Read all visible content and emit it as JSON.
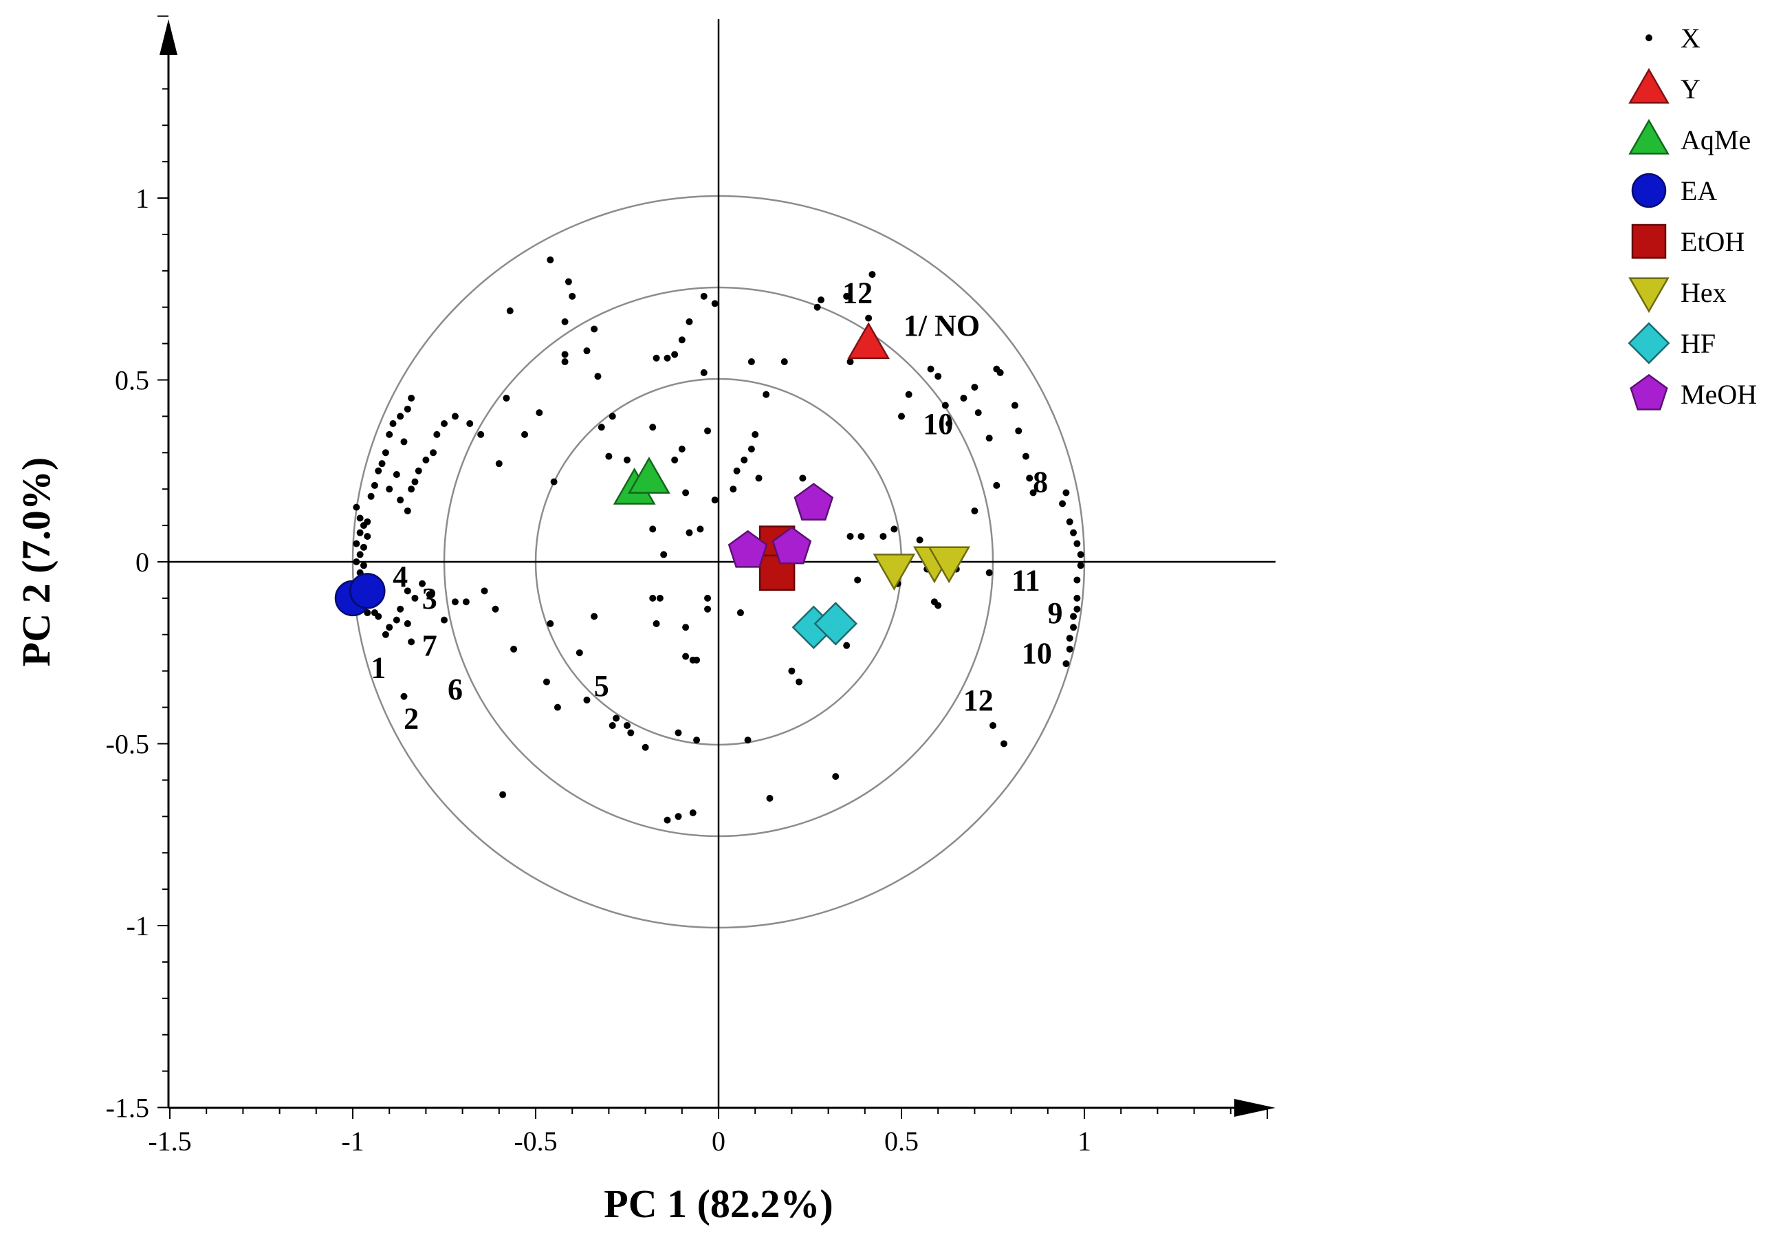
{
  "chart_data": {
    "type": "scatter",
    "title": "",
    "xlabel": "PC 1 (82.2%)",
    "ylabel": "PC 2 (7.0%)",
    "xlim": [
      -1.5,
      1.5
    ],
    "ylim": [
      -1.5,
      1.5
    ],
    "x_ticks": [
      "-1.5",
      "-1",
      "-0.5",
      "0",
      "0.5",
      "1"
    ],
    "x_tick_values": [
      -1.5,
      -1,
      -0.5,
      0,
      0.5,
      1
    ],
    "y_ticks": [
      "-1.5",
      "-1",
      "-0.5",
      "0",
      "0.5",
      "1"
    ],
    "y_tick_values": [
      -1.5,
      -1,
      -0.5,
      0,
      0.5,
      1
    ],
    "grid": false,
    "reference_circles": [
      0.5,
      0.75,
      1.0
    ],
    "legend_position": "top-right",
    "series": [
      {
        "name": "X",
        "marker": "dot",
        "color": "#000000",
        "points": [
          [
            -0.99,
            0.15
          ],
          [
            -0.98,
            0.12
          ],
          [
            -0.97,
            0.1
          ],
          [
            -0.98,
            0.08
          ],
          [
            -0.99,
            0.05
          ],
          [
            -0.97,
            0.04
          ],
          [
            -0.98,
            0.02
          ],
          [
            -0.99,
            0.0
          ],
          [
            -0.97,
            -0.01
          ],
          [
            -0.98,
            -0.03
          ],
          [
            -0.96,
            0.07
          ],
          [
            -0.96,
            0.11
          ],
          [
            -0.95,
            0.18
          ],
          [
            -0.94,
            0.21
          ],
          [
            -0.93,
            0.25
          ],
          [
            -0.92,
            0.27
          ],
          [
            -0.91,
            0.3
          ],
          [
            -0.9,
            0.35
          ],
          [
            -0.89,
            0.38
          ],
          [
            -0.87,
            0.4
          ],
          [
            -0.85,
            0.42
          ],
          [
            -0.84,
            0.45
          ],
          [
            -0.86,
            0.33
          ],
          [
            -0.88,
            0.24
          ],
          [
            -0.9,
            0.2
          ],
          [
            -0.87,
            0.17
          ],
          [
            -0.85,
            0.14
          ],
          [
            -0.84,
            0.2
          ],
          [
            -0.83,
            0.22
          ],
          [
            -0.82,
            0.25
          ],
          [
            -0.8,
            0.28
          ],
          [
            -0.78,
            0.3
          ],
          [
            -0.77,
            0.35
          ],
          [
            -0.75,
            0.38
          ],
          [
            -0.72,
            0.4
          ],
          [
            -0.68,
            0.38
          ],
          [
            -0.65,
            0.35
          ],
          [
            -0.6,
            0.27
          ],
          [
            -0.58,
            0.45
          ],
          [
            -0.57,
            0.69
          ],
          [
            -0.53,
            0.35
          ],
          [
            -0.49,
            0.41
          ],
          [
            -0.46,
            0.83
          ],
          [
            -0.45,
            0.22
          ],
          [
            -0.42,
            0.66
          ],
          [
            -0.42,
            0.57
          ],
          [
            -0.42,
            0.55
          ],
          [
            -0.41,
            0.77
          ],
          [
            -0.4,
            0.73
          ],
          [
            -0.36,
            0.58
          ],
          [
            -0.33,
            0.51
          ],
          [
            -0.34,
            0.64
          ],
          [
            -0.32,
            0.37
          ],
          [
            -0.29,
            0.4
          ],
          [
            -0.3,
            0.29
          ],
          [
            -0.25,
            0.28
          ],
          [
            -0.22,
            0.19
          ],
          [
            -0.18,
            0.37
          ],
          [
            -0.17,
            0.56
          ],
          [
            -0.14,
            0.56
          ],
          [
            -0.12,
            0.57
          ],
          [
            -0.1,
            0.61
          ],
          [
            -0.08,
            0.66
          ],
          [
            -0.04,
            0.52
          ],
          [
            -0.04,
            0.73
          ],
          [
            -0.01,
            0.71
          ],
          [
            -0.18,
            0.09
          ],
          [
            -0.15,
            0.02
          ],
          [
            -0.12,
            0.28
          ],
          [
            -0.1,
            0.31
          ],
          [
            -0.09,
            0.19
          ],
          [
            -0.08,
            0.08
          ],
          [
            -0.05,
            0.09
          ],
          [
            -0.03,
            0.36
          ],
          [
            -0.01,
            0.17
          ],
          [
            0.04,
            0.2
          ],
          [
            0.05,
            0.25
          ],
          [
            0.07,
            0.28
          ],
          [
            0.09,
            0.31
          ],
          [
            0.1,
            0.35
          ],
          [
            0.11,
            0.23
          ],
          [
            0.13,
            0.46
          ],
          [
            0.09,
            0.55
          ],
          [
            0.18,
            0.55
          ],
          [
            0.23,
            0.23
          ],
          [
            0.26,
            0.2
          ],
          [
            0.28,
            0.72
          ],
          [
            0.27,
            0.7
          ],
          [
            0.35,
            0.73
          ],
          [
            0.42,
            0.79
          ],
          [
            0.41,
            0.67
          ],
          [
            0.36,
            0.55
          ],
          [
            0.36,
            0.07
          ],
          [
            0.39,
            0.07
          ],
          [
            0.45,
            0.07
          ],
          [
            0.48,
            0.09
          ],
          [
            0.5,
            0.4
          ],
          [
            0.52,
            0.46
          ],
          [
            0.58,
            0.53
          ],
          [
            0.6,
            0.51
          ],
          [
            0.62,
            0.43
          ],
          [
            0.63,
            0.38
          ],
          [
            0.67,
            0.45
          ],
          [
            0.7,
            0.48
          ],
          [
            0.71,
            0.41
          ],
          [
            0.74,
            0.34
          ],
          [
            0.76,
            0.53
          ],
          [
            0.77,
            0.52
          ],
          [
            0.81,
            0.43
          ],
          [
            0.82,
            0.36
          ],
          [
            0.84,
            0.29
          ],
          [
            0.85,
            0.23
          ],
          [
            0.86,
            0.19
          ],
          [
            0.76,
            0.21
          ],
          [
            0.7,
            0.14
          ],
          [
            0.55,
            0.06
          ],
          [
            0.57,
            -0.02
          ],
          [
            0.59,
            -0.11
          ],
          [
            0.65,
            -0.02
          ],
          [
            0.74,
            -0.03
          ],
          [
            0.6,
            -0.12
          ],
          [
            0.49,
            -0.06
          ],
          [
            0.38,
            -0.05
          ],
          [
            0.35,
            -0.23
          ],
          [
            0.22,
            -0.33
          ],
          [
            0.2,
            -0.3
          ],
          [
            0.17,
            -0.05
          ],
          [
            0.06,
            -0.14
          ],
          [
            -0.03,
            -0.1
          ],
          [
            -0.03,
            -0.13
          ],
          [
            -0.06,
            -0.27
          ],
          [
            -0.07,
            -0.27
          ],
          [
            -0.09,
            -0.18
          ],
          [
            -0.09,
            -0.26
          ],
          [
            -0.18,
            -0.1
          ],
          [
            -0.16,
            -0.1
          ],
          [
            -0.17,
            -0.17
          ],
          [
            -0.34,
            -0.15
          ],
          [
            -0.38,
            -0.25
          ],
          [
            -0.47,
            -0.33
          ],
          [
            -0.46,
            -0.17
          ],
          [
            -0.56,
            -0.24
          ],
          [
            -0.61,
            -0.13
          ],
          [
            -0.64,
            -0.08
          ],
          [
            -0.69,
            -0.11
          ],
          [
            -0.72,
            -0.11
          ],
          [
            -0.75,
            -0.16
          ],
          [
            -0.79,
            -0.09
          ],
          [
            -0.81,
            -0.06
          ],
          [
            -0.83,
            -0.1
          ],
          [
            -0.85,
            -0.08
          ],
          [
            -0.85,
            -0.17
          ],
          [
            -0.87,
            -0.13
          ],
          [
            -0.88,
            -0.16
          ],
          [
            -0.9,
            -0.18
          ],
          [
            -0.91,
            -0.2
          ],
          [
            -0.93,
            -0.15
          ],
          [
            -0.94,
            -0.14
          ],
          [
            -0.96,
            -0.14
          ],
          [
            -0.94,
            -0.11
          ],
          [
            -0.86,
            -0.37
          ],
          [
            -0.84,
            -0.22
          ],
          [
            -0.59,
            -0.64
          ],
          [
            -0.44,
            -0.4
          ],
          [
            -0.36,
            -0.38
          ],
          [
            -0.29,
            -0.45
          ],
          [
            -0.28,
            -0.43
          ],
          [
            -0.25,
            -0.45
          ],
          [
            -0.24,
            -0.47
          ],
          [
            -0.2,
            -0.51
          ],
          [
            -0.14,
            -0.71
          ],
          [
            -0.11,
            -0.7
          ],
          [
            -0.07,
            -0.69
          ],
          [
            -0.11,
            -0.47
          ],
          [
            -0.06,
            -0.49
          ],
          [
            0.08,
            -0.49
          ],
          [
            0.14,
            -0.65
          ],
          [
            0.32,
            -0.59
          ],
          [
            0.75,
            -0.45
          ],
          [
            0.78,
            -0.5
          ],
          [
            0.95,
            -0.28
          ],
          [
            0.96,
            -0.24
          ],
          [
            0.96,
            -0.21
          ],
          [
            0.97,
            -0.18
          ],
          [
            0.97,
            -0.15
          ],
          [
            0.98,
            -0.13
          ],
          [
            0.98,
            -0.1
          ],
          [
            0.98,
            -0.05
          ],
          [
            0.99,
            -0.01
          ],
          [
            0.99,
            0.02
          ],
          [
            0.98,
            0.05
          ],
          [
            0.97,
            0.08
          ],
          [
            0.96,
            0.11
          ],
          [
            0.95,
            0.19
          ],
          [
            0.94,
            0.16
          ]
        ]
      },
      {
        "name": "Y",
        "marker": "triangle-up",
        "color": "#e52222",
        "points": [
          [
            0.41,
            0.6
          ]
        ]
      },
      {
        "name": "AqMe",
        "marker": "triangle-up",
        "color": "#22bb33",
        "points": [
          [
            -0.23,
            0.2
          ],
          [
            -0.19,
            0.23
          ]
        ]
      },
      {
        "name": "EA",
        "marker": "circle",
        "color": "#0a14c8",
        "points": [
          [
            -1.0,
            -0.1
          ],
          [
            -0.96,
            -0.08
          ]
        ]
      },
      {
        "name": "EtOH",
        "marker": "square",
        "color": "#b80f0f",
        "points": [
          [
            0.16,
            0.05
          ],
          [
            0.16,
            -0.03
          ]
        ]
      },
      {
        "name": "Hex",
        "marker": "triangle-down",
        "color": "#c7c31e",
        "points": [
          [
            0.48,
            -0.02
          ],
          [
            0.59,
            0.0
          ],
          [
            0.63,
            0.0
          ]
        ]
      },
      {
        "name": "HF",
        "marker": "diamond",
        "color": "#2ac7cf",
        "points": [
          [
            0.26,
            -0.18
          ],
          [
            0.32,
            -0.17
          ]
        ]
      },
      {
        "name": "MeOH",
        "marker": "pentagon",
        "color": "#a81fd0",
        "points": [
          [
            0.26,
            0.16
          ],
          [
            0.08,
            0.03
          ],
          [
            0.2,
            0.04
          ]
        ]
      }
    ],
    "annotations": [
      {
        "text": "12",
        "x": 0.38,
        "y": 0.74
      },
      {
        "text": "1/ NO",
        "x": 0.61,
        "y": 0.65
      },
      {
        "text": "10",
        "x": 0.6,
        "y": 0.38
      },
      {
        "text": "8",
        "x": 0.88,
        "y": 0.22
      },
      {
        "text": "11",
        "x": 0.84,
        "y": -0.05
      },
      {
        "text": "9",
        "x": 0.92,
        "y": -0.14
      },
      {
        "text": "10",
        "x": 0.87,
        "y": -0.25
      },
      {
        "text": "12",
        "x": 0.71,
        "y": -0.38
      },
      {
        "text": "4",
        "x": -0.87,
        "y": -0.04
      },
      {
        "text": "3",
        "x": -0.79,
        "y": -0.1
      },
      {
        "text": "7",
        "x": -0.79,
        "y": -0.23
      },
      {
        "text": "1",
        "x": -0.93,
        "y": -0.29
      },
      {
        "text": "6",
        "x": -0.72,
        "y": -0.35
      },
      {
        "text": "2",
        "x": -0.84,
        "y": -0.43
      },
      {
        "text": "5",
        "x": -0.32,
        "y": -0.34
      }
    ]
  }
}
